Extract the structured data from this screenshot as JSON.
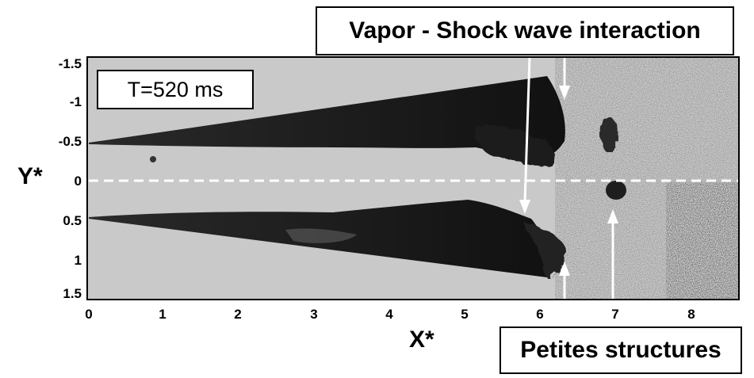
{
  "image": {
    "description_free": true,
    "annotations": {
      "time_label": "T=520 ms",
      "top_label": "Vapor - Shock wave interaction",
      "bottom_label": "Petites structures"
    },
    "axes": {
      "x_title": "X*",
      "y_title": "Y*",
      "x_ticks": [
        "0",
        "1",
        "2",
        "3",
        "4",
        "5",
        "6",
        "7",
        "8"
      ],
      "y_ticks": [
        "-1.5",
        "-1",
        "-0.5",
        "0",
        "0.5",
        "1",
        "1.5"
      ]
    },
    "colors": {
      "background": "#c8c8c8",
      "vapor": "#141414",
      "arrows": "#ffffff",
      "centerline": "#ffffff"
    }
  }
}
